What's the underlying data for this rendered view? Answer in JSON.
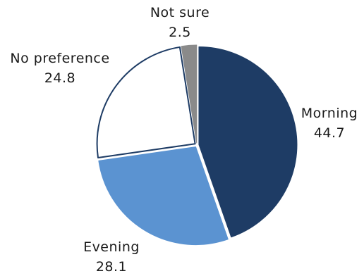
{
  "chart_data": {
    "type": "pie",
    "title": "",
    "slices": [
      {
        "label": "Morning",
        "value": 44.7,
        "display": "44.7",
        "color": "#1e3c65",
        "stroke": "#1e3c65"
      },
      {
        "label": "Evening",
        "value": 28.1,
        "display": "28.1",
        "color": "#5b93d1",
        "stroke": "#5b93d1"
      },
      {
        "label": "No preference",
        "value": 24.8,
        "display": "24.8",
        "color": "#ffffff",
        "stroke": "#1e3c65"
      },
      {
        "label": "Not sure",
        "value": 2.5,
        "display": "2.5",
        "color": "#8a8a8a",
        "stroke": "#8a8a8a"
      }
    ],
    "start_angle": "12 o'clock",
    "direction": "clockwise",
    "legend": "none",
    "data_labels": "outside"
  }
}
